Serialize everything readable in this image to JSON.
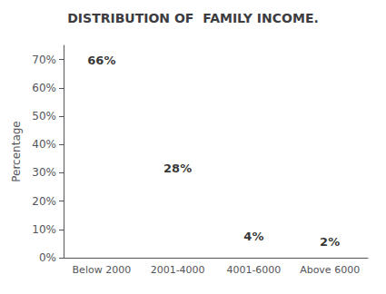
{
  "chart_data": {
    "type": "scatter",
    "title": "DISTRIBUTION OF  FAMILY INCOME.",
    "categories": [
      "Below 2000",
      "2001-4000",
      "4001-6000",
      "Above 6000"
    ],
    "values": [
      66,
      28,
      4,
      2
    ],
    "value_labels": [
      "66%",
      "28%",
      "4%",
      "2%"
    ],
    "data_labels": true,
    "marker": "none",
    "ylabel": "Percentage",
    "ylim": [
      0,
      75
    ],
    "yticks": [
      {
        "value": 0,
        "label": "0%"
      },
      {
        "value": 10,
        "label": "10%"
      },
      {
        "value": 20,
        "label": "20%"
      },
      {
        "value": 30,
        "label": "30%"
      },
      {
        "value": 40,
        "label": "40%"
      },
      {
        "value": 50,
        "label": "50%"
      },
      {
        "value": 60,
        "label": "60%"
      },
      {
        "value": 70,
        "label": "70%"
      }
    ],
    "grid": false
  }
}
